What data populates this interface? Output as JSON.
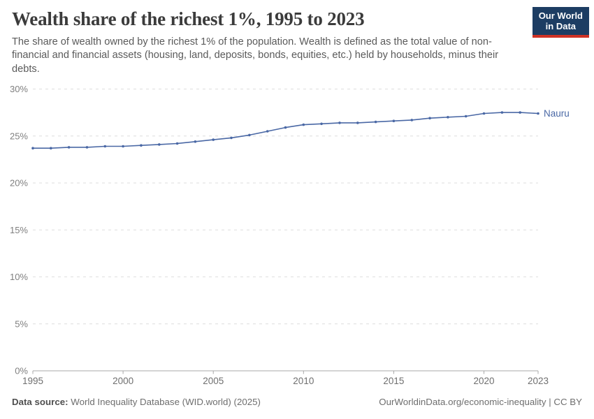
{
  "header": {
    "title": "Wealth share of the richest 1%, 1995 to 2023",
    "subtitle": "The share of wealth owned by the richest 1% of the population. Wealth is defined as the total value of non-financial and financial assets (housing, land, deposits, bonds, equities, etc.) held by households, minus their debts.",
    "logo_line1": "Our World",
    "logo_line2": "in Data",
    "logo_bg_color": "#1d3d63",
    "logo_stripe_color": "#cf3225"
  },
  "chart_data": {
    "type": "line",
    "title": "Wealth share of the richest 1%, 1995 to 2023",
    "xlabel": "",
    "ylabel": "",
    "xlim": [
      1995,
      2023
    ],
    "ylim": [
      0,
      30
    ],
    "grid": "horizontal-dashed",
    "legend_position": "end-of-line-label",
    "x_ticks": [
      1995,
      2000,
      2005,
      2010,
      2015,
      2020,
      2023
    ],
    "y_ticks": [
      0,
      5,
      10,
      15,
      20,
      25,
      30
    ],
    "y_tick_suffix": "%",
    "series": [
      {
        "name": "Nauru",
        "color": "#4a68a5",
        "x": [
          1995,
          1996,
          1997,
          1998,
          1999,
          2000,
          2001,
          2002,
          2003,
          2004,
          2005,
          2006,
          2007,
          2008,
          2009,
          2010,
          2011,
          2012,
          2013,
          2014,
          2015,
          2016,
          2017,
          2018,
          2019,
          2020,
          2021,
          2022,
          2023
        ],
        "values": [
          23.7,
          23.7,
          23.8,
          23.8,
          23.9,
          23.9,
          24.0,
          24.1,
          24.2,
          24.4,
          24.6,
          24.8,
          25.1,
          25.5,
          25.9,
          26.2,
          26.3,
          26.4,
          26.4,
          26.5,
          26.6,
          26.7,
          26.9,
          27.0,
          27.1,
          27.4,
          27.5,
          27.5,
          27.4
        ]
      }
    ],
    "end_label": "Nauru"
  },
  "footer": {
    "datasource_label": "Data source:",
    "datasource_value": " World Inequality Database (WID.world) (2025)",
    "credit": "OurWorldinData.org/economic-inequality | CC BY"
  }
}
